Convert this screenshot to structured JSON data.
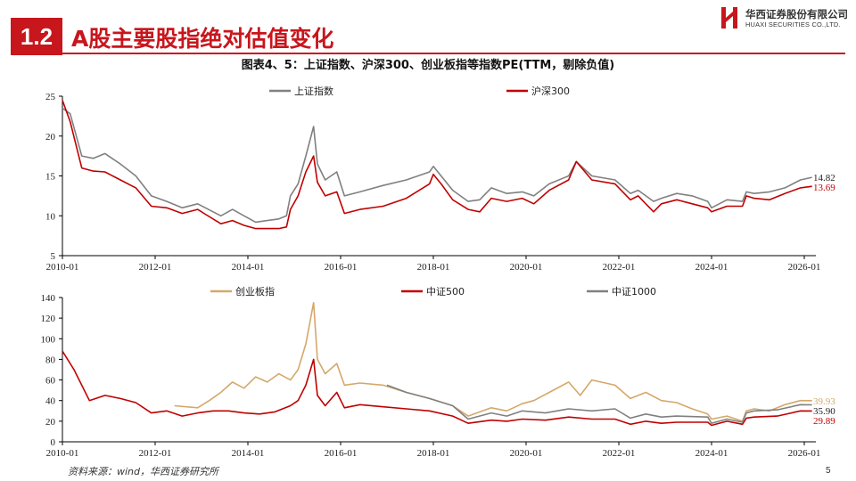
{
  "header": {
    "section_number": "1.2",
    "title": "A股主要股指绝对估值变化",
    "logo_cn": "华西证券股份有限公司",
    "logo_en": "HUAXI SECURITIES CO.,LTD.",
    "figure_title": "图表4、5：上证指数、沪深300、创业板指等指数PE(TTM，剔除负值)"
  },
  "footer": {
    "source": "资料来源：wind，华西证券研究所",
    "page_number": "5"
  },
  "colors": {
    "accent": "#c8161d",
    "gray": "#808080",
    "gold": "#d4a86a",
    "red": "#c00000"
  },
  "chart_data": [
    {
      "type": "line",
      "title": "",
      "x_ticks": [
        "2010-01",
        "2012-01",
        "2014-01",
        "2016-01",
        "2018-01",
        "2020-01",
        "2022-01",
        "2024-01",
        "2026-01"
      ],
      "xlim": [
        "2010-01",
        "2026-04"
      ],
      "ylim": [
        5,
        25
      ],
      "y_ticks": [
        5,
        10,
        15,
        20,
        25
      ],
      "legend": "top-center",
      "grid": false,
      "series": [
        {
          "name": "上证指数",
          "color": "gray",
          "end_label": "14.82",
          "x": [
            "2010-01",
            "2010-03",
            "2010-06",
            "2010-09",
            "2010-12",
            "2011-04",
            "2011-08",
            "2011-12",
            "2012-04",
            "2012-08",
            "2012-12",
            "2013-02",
            "2013-06",
            "2013-09",
            "2013-12",
            "2014-03",
            "2014-06",
            "2014-09",
            "2014-11",
            "2014-12",
            "2015-02",
            "2015-04",
            "2015-06",
            "2015-07",
            "2015-09",
            "2015-12",
            "2016-02",
            "2016-06",
            "2016-12",
            "2017-06",
            "2017-12",
            "2018-01",
            "2018-03",
            "2018-06",
            "2018-10",
            "2019-01",
            "2019-04",
            "2019-08",
            "2019-12",
            "2020-03",
            "2020-07",
            "2020-12",
            "2021-02",
            "2021-06",
            "2021-12",
            "2022-04",
            "2022-06",
            "2022-10",
            "2022-12",
            "2023-04",
            "2023-08",
            "2023-12",
            "2024-01",
            "2024-05",
            "2024-09",
            "2024-10",
            "2024-12",
            "2025-04",
            "2025-08",
            "2025-12",
            "2026-03"
          ],
          "values": [
            23.5,
            22.8,
            17.5,
            17.2,
            17.8,
            16.5,
            15.0,
            12.5,
            11.8,
            11.0,
            11.5,
            11.0,
            10.0,
            10.8,
            10.0,
            9.2,
            9.4,
            9.6,
            10.0,
            12.5,
            14.0,
            17.5,
            21.2,
            16.5,
            14.5,
            15.5,
            12.5,
            13.0,
            13.8,
            14.5,
            15.5,
            16.2,
            15.0,
            13.2,
            11.8,
            12.0,
            13.5,
            12.8,
            13.0,
            12.5,
            14.0,
            15.0,
            16.8,
            15.0,
            14.5,
            12.8,
            13.2,
            11.8,
            12.2,
            12.8,
            12.5,
            11.8,
            11.0,
            12.0,
            11.8,
            13.0,
            12.8,
            13.0,
            13.5,
            14.5,
            14.82
          ]
        },
        {
          "name": "沪深300",
          "color": "red",
          "end_label": "13.69",
          "x": [
            "2010-01",
            "2010-03",
            "2010-06",
            "2010-09",
            "2010-12",
            "2011-04",
            "2011-08",
            "2011-12",
            "2012-04",
            "2012-08",
            "2012-12",
            "2013-02",
            "2013-06",
            "2013-09",
            "2013-12",
            "2014-03",
            "2014-06",
            "2014-09",
            "2014-11",
            "2014-12",
            "2015-02",
            "2015-04",
            "2015-06",
            "2015-07",
            "2015-09",
            "2015-12",
            "2016-02",
            "2016-06",
            "2016-12",
            "2017-06",
            "2017-12",
            "2018-01",
            "2018-03",
            "2018-06",
            "2018-10",
            "2019-01",
            "2019-04",
            "2019-08",
            "2019-12",
            "2020-03",
            "2020-07",
            "2020-12",
            "2021-02",
            "2021-06",
            "2021-12",
            "2022-04",
            "2022-06",
            "2022-10",
            "2022-12",
            "2023-04",
            "2023-08",
            "2023-12",
            "2024-01",
            "2024-05",
            "2024-09",
            "2024-10",
            "2024-12",
            "2025-04",
            "2025-08",
            "2025-12",
            "2026-03"
          ],
          "values": [
            24.5,
            21.8,
            16.0,
            15.6,
            15.5,
            14.5,
            13.5,
            11.2,
            11.0,
            10.3,
            10.8,
            10.2,
            9.0,
            9.4,
            8.8,
            8.4,
            8.4,
            8.4,
            8.6,
            10.8,
            12.5,
            15.5,
            17.5,
            14.2,
            12.5,
            13.0,
            10.3,
            10.8,
            11.2,
            12.2,
            14.0,
            15.2,
            14.0,
            12.0,
            10.8,
            10.5,
            12.2,
            11.8,
            12.2,
            11.5,
            13.2,
            14.5,
            16.8,
            14.5,
            14.0,
            12.0,
            12.5,
            10.5,
            11.5,
            12.0,
            11.5,
            11.0,
            10.5,
            11.2,
            11.2,
            12.5,
            12.2,
            12.0,
            12.8,
            13.5,
            13.69
          ]
        }
      ]
    },
    {
      "type": "line",
      "title": "",
      "x_ticks": [
        "2010-01",
        "2012-01",
        "2014-01",
        "2016-01",
        "2018-01",
        "2020-01",
        "2022-01",
        "2024-01",
        "2026-01"
      ],
      "xlim": [
        "2010-01",
        "2026-04"
      ],
      "ylim": [
        0,
        140
      ],
      "y_ticks": [
        0,
        20,
        40,
        60,
        80,
        100,
        120,
        140
      ],
      "legend": "top",
      "grid": false,
      "series": [
        {
          "name": "创业板指",
          "color": "gold",
          "end_label": "39.93",
          "x": [
            "2012-06",
            "2012-12",
            "2013-03",
            "2013-06",
            "2013-09",
            "2013-12",
            "2014-03",
            "2014-06",
            "2014-09",
            "2014-12",
            "2015-02",
            "2015-04",
            "2015-06",
            "2015-07",
            "2015-09",
            "2015-12",
            "2016-02",
            "2016-06",
            "2016-12",
            "2017-06",
            "2017-12",
            "2018-06",
            "2018-10",
            "2019-04",
            "2019-08",
            "2019-12",
            "2020-03",
            "2020-07",
            "2020-12",
            "2021-03",
            "2021-06",
            "2021-12",
            "2022-04",
            "2022-08",
            "2022-12",
            "2023-04",
            "2023-08",
            "2023-12",
            "2024-01",
            "2024-05",
            "2024-09",
            "2024-10",
            "2024-12",
            "2025-04",
            "2025-08",
            "2025-12",
            "2026-03"
          ],
          "values": [
            35,
            33,
            40,
            48,
            58,
            52,
            63,
            58,
            66,
            60,
            70,
            95,
            135,
            80,
            66,
            76,
            55,
            57,
            55,
            48,
            42,
            35,
            25,
            33,
            30,
            37,
            40,
            48,
            58,
            45,
            60,
            55,
            42,
            48,
            40,
            38,
            32,
            27,
            22,
            25,
            20,
            30,
            32,
            30,
            36,
            40,
            39.93
          ]
        },
        {
          "name": "中证500",
          "color": "red",
          "end_label": "29.89",
          "x": [
            "2010-01",
            "2010-04",
            "2010-08",
            "2010-12",
            "2011-04",
            "2011-08",
            "2011-12",
            "2012-04",
            "2012-08",
            "2012-12",
            "2013-04",
            "2013-08",
            "2013-12",
            "2014-04",
            "2014-08",
            "2014-12",
            "2015-02",
            "2015-04",
            "2015-06",
            "2015-07",
            "2015-09",
            "2015-12",
            "2016-02",
            "2016-06",
            "2016-12",
            "2017-06",
            "2017-12",
            "2018-06",
            "2018-10",
            "2019-04",
            "2019-08",
            "2019-12",
            "2020-06",
            "2020-12",
            "2021-06",
            "2021-12",
            "2022-04",
            "2022-08",
            "2022-12",
            "2023-04",
            "2023-12",
            "2024-01",
            "2024-05",
            "2024-09",
            "2024-10",
            "2024-12",
            "2025-06",
            "2025-12",
            "2026-03"
          ],
          "values": [
            88,
            70,
            40,
            45,
            42,
            38,
            28,
            30,
            25,
            28,
            30,
            30,
            28,
            27,
            29,
            35,
            40,
            55,
            80,
            45,
            35,
            48,
            33,
            36,
            34,
            32,
            30,
            25,
            18,
            21,
            20,
            22,
            21,
            24,
            22,
            22,
            17,
            20,
            18,
            19,
            19,
            16,
            20,
            17,
            23,
            24,
            25,
            30,
            29.89
          ]
        },
        {
          "name": "中证1000",
          "color": "gray",
          "end_label": "35.90",
          "x": [
            "2017-01",
            "2017-06",
            "2017-12",
            "2018-06",
            "2018-10",
            "2019-04",
            "2019-08",
            "2019-12",
            "2020-06",
            "2020-12",
            "2021-06",
            "2021-12",
            "2022-04",
            "2022-08",
            "2022-12",
            "2023-04",
            "2023-12",
            "2024-01",
            "2024-05",
            "2024-09",
            "2024-10",
            "2024-12",
            "2025-06",
            "2025-12",
            "2026-03"
          ],
          "values": [
            55,
            48,
            42,
            35,
            22,
            28,
            25,
            30,
            28,
            32,
            30,
            32,
            23,
            27,
            24,
            25,
            24,
            18,
            22,
            19,
            28,
            30,
            31,
            36,
            35.9
          ]
        }
      ]
    }
  ]
}
